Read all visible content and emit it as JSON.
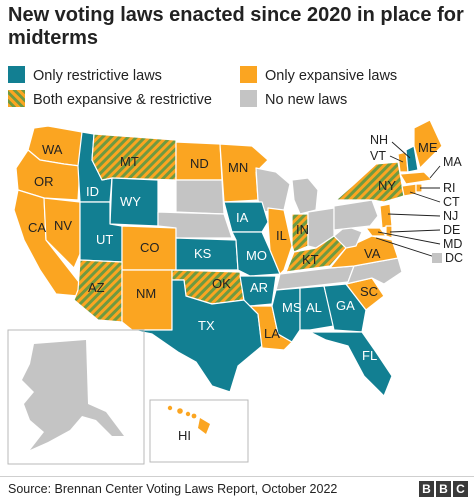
{
  "title": "New voting laws enacted since 2020 in place for midterms",
  "colors": {
    "restrictive": "#127f92",
    "expansive": "#fba521",
    "both_a": "#fba521",
    "both_b": "#6f9a40",
    "none": "#c4c4c4"
  },
  "legend": {
    "restrictive": "Only restrictive laws",
    "expansive": "Only expansive laws",
    "both": "Both expansive & restrictive",
    "none": "No new laws"
  },
  "states": {
    "WA": "WA",
    "OR": "OR",
    "CA": "CA",
    "NV": "NV",
    "ID": "ID",
    "MT": "MT",
    "WY": "WY",
    "UT": "UT",
    "CO": "CO",
    "AZ": "AZ",
    "NM": "NM",
    "ND": "ND",
    "KS": "KS",
    "OK": "OK",
    "TX": "TX",
    "MN": "MN",
    "IA": "IA",
    "MO": "MO",
    "AR": "AR",
    "LA": "LA",
    "IL": "IL",
    "IN": "IN",
    "KT": "KT",
    "MS": "MS",
    "AL": "AL",
    "GA": "GA",
    "FL": "FL",
    "SC": "SC",
    "VA": "VA",
    "NY": "NY",
    "ME": "ME",
    "HI": "HI"
  },
  "callouts": {
    "NH": "NH",
    "VT": "VT",
    "MA": "MA",
    "RI": "RI",
    "CT": "CT",
    "NJ": "NJ",
    "DE": "DE",
    "MD": "MD",
    "DC": "DC"
  },
  "source": "Source: Brennan Center Voting Laws Report, October 2022",
  "logo": [
    "B",
    "B",
    "C"
  ]
}
